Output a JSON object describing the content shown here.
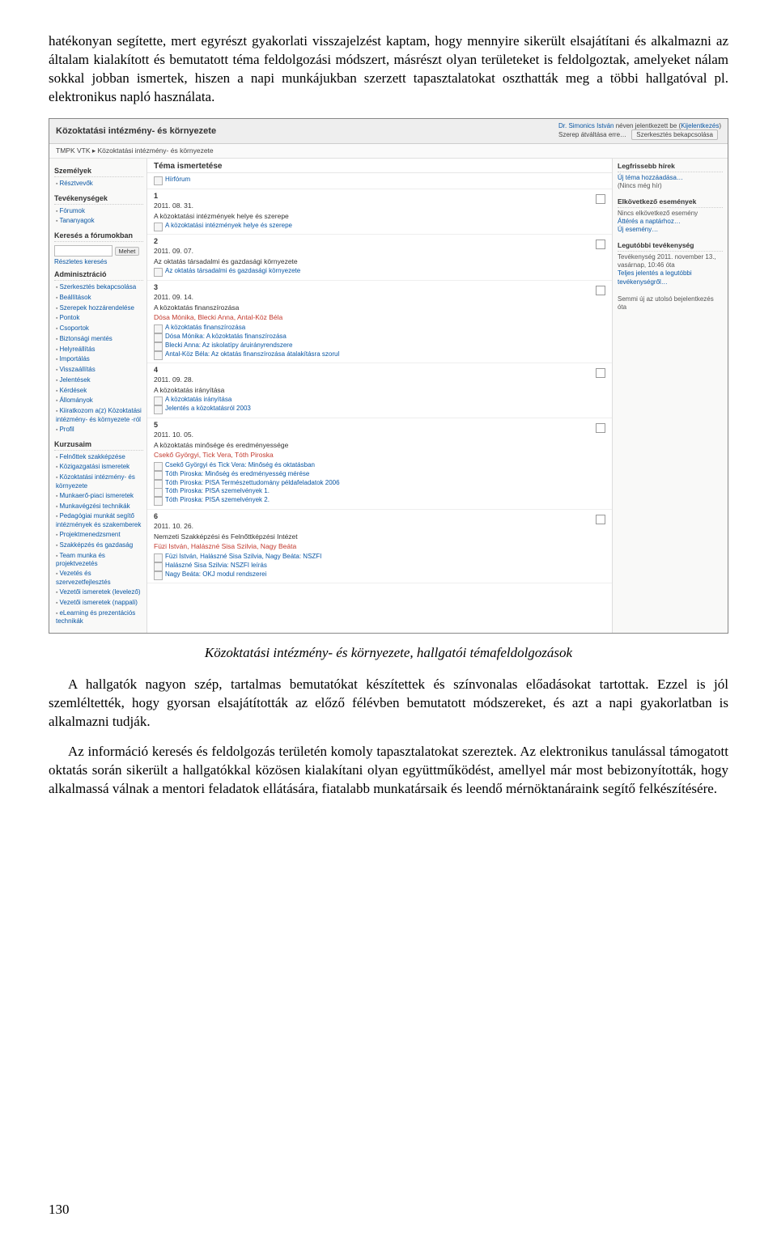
{
  "paragraphs": {
    "p1": "hatékonyan segítette, mert egyrészt gyakorlati visszajelzést kaptam, hogy mennyire sikerült elsajátítani és alkalmazni az általam kialakított és bemutatott téma feldolgozási módszert, másrészt olyan területeket is feldolgoztak, amelyeket nálam sokkal jobban ismertek, hiszen a napi munkájukban szerzett tapasztalatokat oszthatták meg a többi hallgatóval pl. elektronikus napló használata.",
    "caption": "Közoktatási intézmény- és környezete, hallgatói témafeldolgozások",
    "p2": "A hallgatók nagyon szép, tartalmas bemutatókat készítettek és színvonalas előadásokat tartottak. Ezzel is jól szemléltették, hogy gyorsan elsajátították az előző félévben bemutatott módszereket, és azt a napi gyakorlatban is alkalmazni tudják.",
    "p3": "Az információ keresés és feldolgozás területén komoly tapasztalatokat szereztek. Az elektronikus tanulással támogatott oktatás során sikerült a hallgatókkal közösen kialakítani olyan együttműködést, amellyel már most bebizonyították, hogy alkalmassá válnak a mentori feladatok ellátására, fiatalabb munkatársaik és leendő mérnöktanáraink segítő felkészítésére."
  },
  "page_number": "130",
  "screenshot": {
    "header": {
      "title": "Közoktatási intézmény- és környezete",
      "user_prefix": "Dr. Simonics István",
      "user_suffix": " néven jelentkezett be (",
      "logout": "Kijelentkezés",
      "close_paren": ")",
      "role_label": "Szerep átváltása erre…",
      "edit_btn": "Szerkesztés bekapcsolása"
    },
    "crumb": "TMPK VTK ▸ Közoktatási intézmény- és környezete",
    "left": {
      "people_title": "Személyek",
      "people": [
        "Résztvevők"
      ],
      "activities_title": "Tevékenységek",
      "activities": [
        "Fórumok",
        "Tananyagok"
      ],
      "search_title": "Keresés a fórumokban",
      "go": "Mehet",
      "advanced": "Részletes keresés",
      "admin_title": "Adminisztráció",
      "admin": [
        "Szerkesztés bekapcsolása",
        "Beállítások",
        "Szerepek hozzárendelése",
        "Pontok",
        "Csoportok",
        "Biztonsági mentés",
        "Helyreállítás",
        "Importálás",
        "Visszaállítás",
        "Jelentések",
        "Kérdések",
        "Állományok",
        "Kiiratkozom a(z) Közoktatási intézmény- és környezete -ról",
        "Profil"
      ],
      "courses_title": "Kurzusaim",
      "courses": [
        "Felnőttek szakképzése",
        "Közigazgatási ismeretek",
        "Közoktatási intézmény- és környezete",
        "Munkaerő-piaci ismeretek",
        "Munkavégzési technikák",
        "Pedagógiai munkát segítő intézmények és szakemberek",
        "Projektmenedzsment",
        "Szakképzés és gazdaság",
        "Team munka és projektvezetés",
        "Vezetés és szervezetfejlesztés",
        "Vezetői ismeretek (levelező)",
        "Vezetői ismeretek (nappali)",
        "eLearning és prezentációs technikák"
      ]
    },
    "mid": {
      "title": "Téma ismertetése",
      "forum": "Hírfórum",
      "sections": [
        {
          "num": "1",
          "date": "2011. 08. 31.",
          "topic": "A közoktatási intézmények helye és szerepe",
          "resources": [
            "A közoktatási intézmények helye és szerepe"
          ]
        },
        {
          "num": "2",
          "date": "2011. 09. 07.",
          "topic": "Az oktatás társadalmi és gazdasági környezete",
          "resources": [
            "Az oktatás társadalmi és gazdasági környezete"
          ]
        },
        {
          "num": "3",
          "date": "2011. 09. 14.",
          "topic": "A közoktatás finanszírozása",
          "authors": "Dósa Mónika, Blecki Anna, Antal-Köz Béla",
          "resources": [
            "A közoktatás finanszírozása",
            "Dósa Mónika: A közoktatás finanszírozása",
            "Blecki Anna: Az iskolatípy áruirányrendszere",
            "Antal-Köz Béla: Az oktatás finanszírozása átalakításra szorul"
          ]
        },
        {
          "num": "4",
          "date": "2011. 09. 28.",
          "topic": "A közoktatás irányítása",
          "resources": [
            "A közoktatás irányítása",
            "Jelentés a közoktatásról 2003"
          ]
        },
        {
          "num": "5",
          "date": "2011. 10. 05.",
          "topic": "A közoktatás minősége és eredményessége",
          "authors": "Csekő Györgyi, Tick Vera, Tóth Piroska",
          "resources": [
            "Csekő Györgyi és Tick Vera: Minőség és oktatásban",
            "Tóth Piroska: Minőség és eredményesség mérése",
            "Tóth Piroska: PISA Természettudomány példafeladatok 2006",
            "Tóth Piroska: PISA szemelvények 1.",
            "Tóth Piroska: PISA szemelvények 2."
          ]
        },
        {
          "num": "6",
          "date": "2011. 10. 26.",
          "topic": "Nemzeti Szakképzési és Felnőttképzési Intézet",
          "authors": "Füzi István, Halászné Sisa Szilvia, Nagy Beáta",
          "resources": [
            "Füzi István, Halászné Sisa Szilvia, Nagy Beáta: NSZFI",
            "Halászné Sisa Szilvia: NSZFI leírás",
            "Nagy Beáta: OKJ modul rendszerei"
          ]
        }
      ]
    },
    "right": {
      "news_title": "Legfrissebb hírek",
      "news_link": "Új téma hozzáadása…",
      "news_empty": "(Nincs még hír)",
      "events_title": "Elkövetkező események",
      "events_empty": "Nincs elkövetkező esemény",
      "cal_link": "Áttérés a naptárhoz…",
      "new_event": "Új esemény…",
      "recent_title": "Legutóbbi tevékenység",
      "recent_date": "Tevékenység 2011. november 13., vasárnap, 10:46 óta",
      "recent_link": "Teljes jelentés a legutóbbi tevékenységről…",
      "recent_empty": "Semmi új az utolsó bejelentkezés óta"
    }
  }
}
